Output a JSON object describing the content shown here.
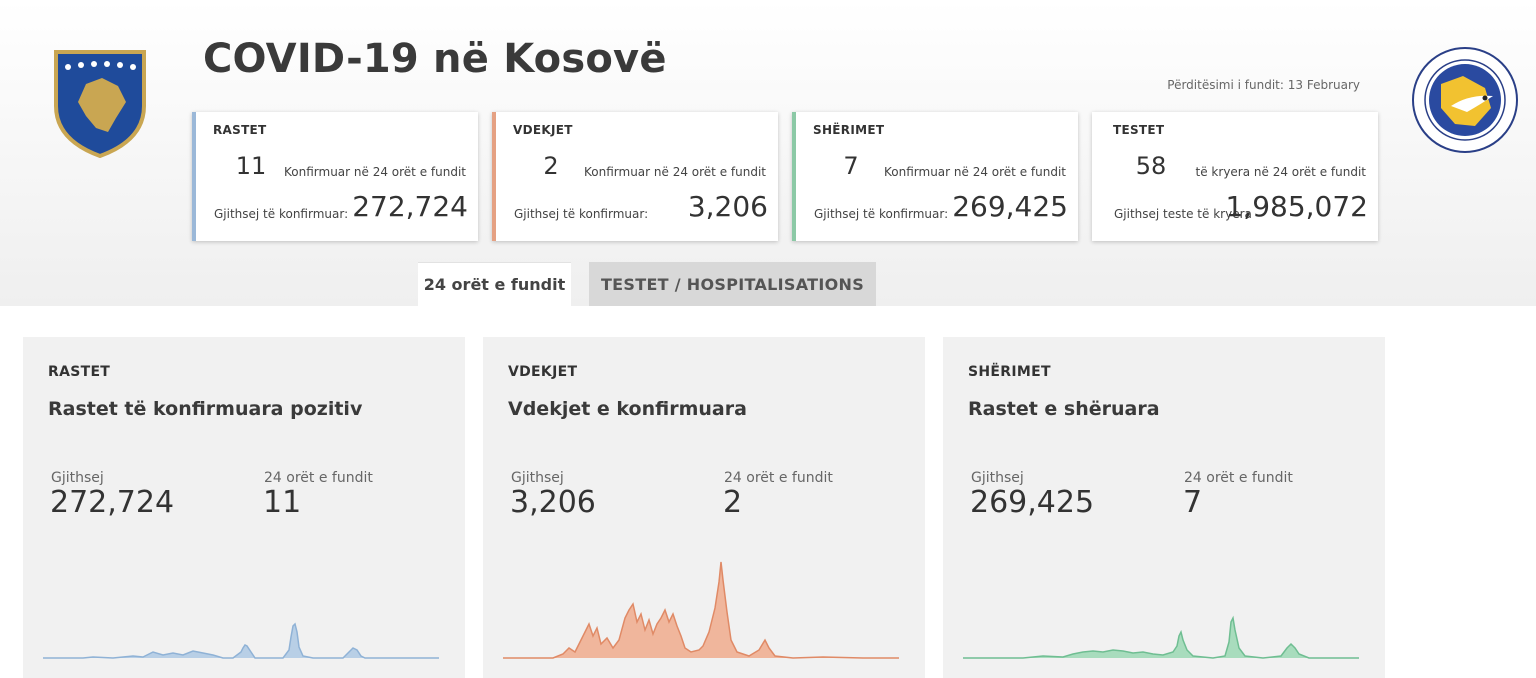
{
  "header": {
    "title": "COVID-19 në Kosovë",
    "updated": "Përditësimi i fundit: 13 February"
  },
  "stats": [
    {
      "label": "RASTET",
      "count_24h": "11",
      "caption_24h": "Konfirmuar në 24 orët e fundit",
      "caption_total": "Gjithsej të konfirmuar:",
      "total": "272,724",
      "color": "#9bb8d8"
    },
    {
      "label": "VDEKJET",
      "count_24h": "2",
      "caption_24h": "Konfirmuar në 24 orët e fundit",
      "caption_total": "Gjithsej të konfirmuar:",
      "total": "3,206",
      "color": "#e5a183"
    },
    {
      "label": "SHËRIMET",
      "count_24h": "7",
      "caption_24h": "Konfirmuar në 24 orët e fundit",
      "caption_total": "Gjithsej të konfirmuar:",
      "total": "269,425",
      "color": "#8cc9a6"
    },
    {
      "label": "TESTET",
      "count_24h": "58",
      "caption_24h": "të kryera në 24 orët e fundit",
      "caption_total": "Gjithsej teste të kryera",
      "total": "1,985,072",
      "color": "#ffffff"
    }
  ],
  "tabs": [
    {
      "label": "24 orët e fundit",
      "active": true
    },
    {
      "label": "TESTET / HOSPITALISATIONS",
      "active": false
    }
  ],
  "panels": [
    {
      "tag": "RASTET",
      "title": "Rastet të konfirmuara pozitiv",
      "total_label": "Gjithsej",
      "total": "272,724",
      "daily_label": "24 orët e fundit",
      "daily": "11",
      "color": "#8fb2d6"
    },
    {
      "tag": "VDEKJET",
      "title": "Vdekjet e konfirmuara",
      "total_label": "Gjithsej",
      "total": "3,206",
      "daily_label": "24 orët e fundit",
      "daily": "2",
      "color": "#e08a66"
    },
    {
      "tag": "SHËRIMET",
      "title": "Rastet e shëruara",
      "total_label": "Gjithsej",
      "total": "269,425",
      "daily_label": "24 orët e fundit",
      "daily": "7",
      "color": "#6fbe92"
    }
  ],
  "icons": {
    "emblem": "kosovo-coat-of-arms-icon",
    "seal": "national-institute-public-health-seal-icon"
  }
}
